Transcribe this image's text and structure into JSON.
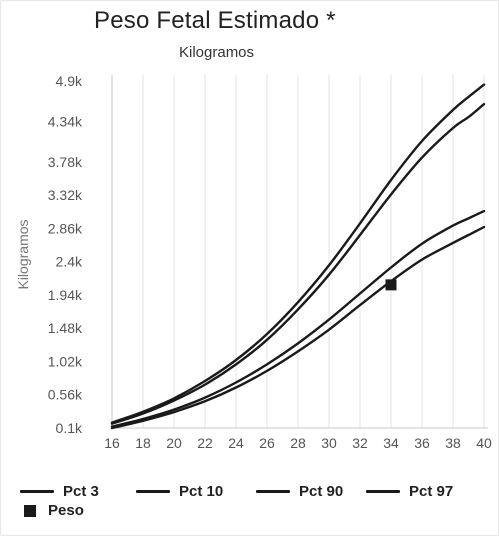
{
  "chart_data": {
    "type": "line",
    "title": "Peso Fetal Estimado *",
    "subtitle": "Kilogramos",
    "xlabel": "",
    "ylabel": "Kilogramos",
    "x": [
      16,
      18,
      20,
      22,
      24,
      26,
      28,
      30,
      32,
      34,
      36,
      38,
      39,
      40
    ],
    "xticks": [
      "16",
      "18",
      "20",
      "22",
      "24",
      "26",
      "28",
      "30",
      "32",
      "34",
      "36",
      "38",
      "40"
    ],
    "yticks": [
      "0.1k",
      "0.56k",
      "1.02k",
      "1.48k",
      "1.94k",
      "2.4k",
      "2.86k",
      "3.32k",
      "3.78k",
      "4.34k",
      "4.9k"
    ],
    "ytick_values": [
      100,
      560,
      1020,
      1480,
      1940,
      2400,
      2860,
      3320,
      3780,
      4340,
      4900
    ],
    "ylim": [
      100,
      4900
    ],
    "xlim": [
      16,
      40
    ],
    "grid": "vertical",
    "legend_position": "bottom",
    "series": [
      {
        "name": "Pct 3",
        "values": [
          100,
          200,
          320,
          470,
          660,
          890,
          1160,
          1460,
          1800,
          2130,
          2430,
          2660,
          2770,
          2880
        ]
      },
      {
        "name": "Pct 10",
        "values": [
          120,
          225,
          355,
          520,
          730,
          980,
          1270,
          1600,
          1960,
          2320,
          2650,
          2900,
          3000,
          3100
        ]
      },
      {
        "name": "Pct 90",
        "values": [
          160,
          300,
          480,
          700,
          980,
          1320,
          1740,
          2220,
          2770,
          3330,
          3840,
          4250,
          4400,
          4580
        ]
      },
      {
        "name": "Pct 97",
        "values": [
          175,
          325,
          510,
          750,
          1040,
          1400,
          1840,
          2350,
          2930,
          3530,
          4070,
          4500,
          4680,
          4850
        ]
      }
    ],
    "points": [
      {
        "name": "Peso",
        "x": 34,
        "y": 2080
      }
    ]
  },
  "colors": {
    "line": "#1a1a1a",
    "grid": "#e3e3e3",
    "axis": "#c9c9c9",
    "tick_text": "#555555",
    "ylabel_text": "#777777"
  }
}
